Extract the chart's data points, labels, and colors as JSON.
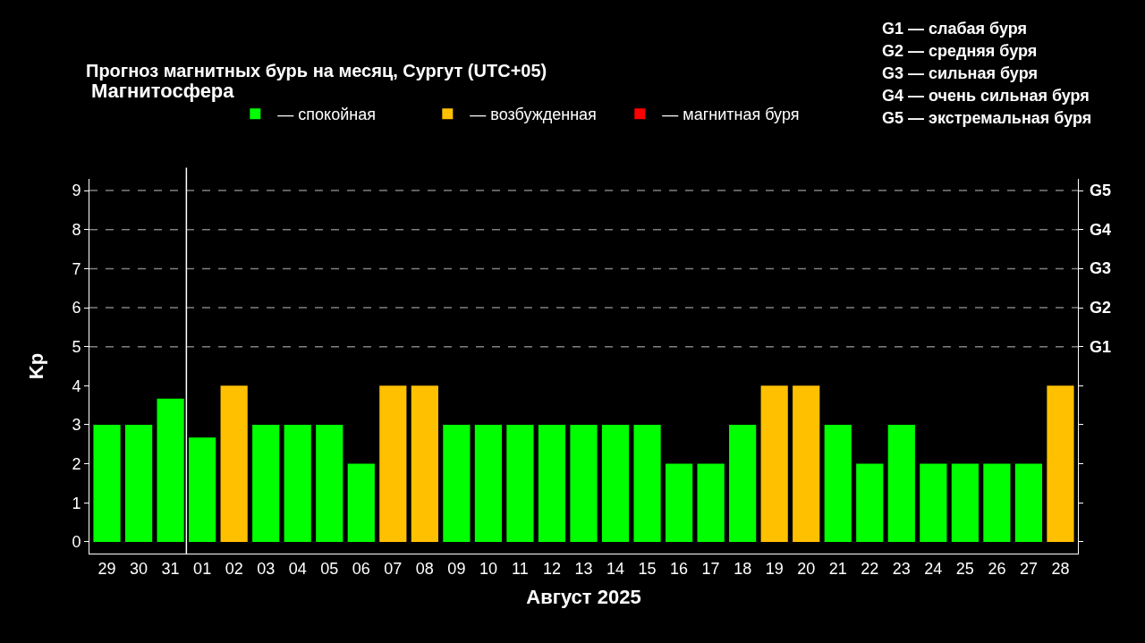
{
  "chart_data": {
    "type": "bar",
    "title": "Прогноз магнитных бурь на месяц, Сургут (UTC+05)",
    "legend_title": "Магнитосфера",
    "xlabel": "Август 2025",
    "ylabel": "Kp",
    "categories": [
      "29",
      "30",
      "31",
      "01",
      "02",
      "03",
      "04",
      "05",
      "06",
      "07",
      "08",
      "09",
      "10",
      "11",
      "12",
      "13",
      "14",
      "15",
      "16",
      "17",
      "18",
      "19",
      "20",
      "21",
      "22",
      "23",
      "24",
      "25",
      "26",
      "27",
      "28"
    ],
    "series": [
      {
        "name": "— спокойная",
        "color": "#00ff00",
        "values": [
          3,
          3,
          3.67,
          2.67,
          null,
          3,
          3,
          3,
          2,
          null,
          null,
          3,
          3,
          3,
          3,
          3,
          3,
          3,
          2,
          2,
          3,
          null,
          null,
          3,
          2,
          3,
          2,
          2,
          2,
          2,
          null
        ]
      },
      {
        "name": "— возбужденная",
        "color": "#ffc000",
        "values": [
          null,
          null,
          null,
          null,
          4,
          null,
          null,
          null,
          null,
          4,
          4,
          null,
          null,
          null,
          null,
          null,
          null,
          null,
          null,
          null,
          null,
          4,
          4,
          null,
          null,
          null,
          null,
          null,
          null,
          null,
          4
        ]
      },
      {
        "name": "— магнитная буря",
        "color": "#ff0000",
        "values": [
          null,
          null,
          null,
          null,
          null,
          null,
          null,
          null,
          null,
          null,
          null,
          null,
          null,
          null,
          null,
          null,
          null,
          null,
          null,
          null,
          null,
          null,
          null,
          null,
          null,
          null,
          null,
          null,
          null,
          null,
          null
        ]
      }
    ],
    "ylim": [
      -0.3,
      9.3
    ],
    "yticks": [
      0,
      1,
      2,
      3,
      4,
      5,
      6,
      7,
      8,
      9
    ],
    "ref_lines": [
      {
        "axis": "y",
        "value": 5,
        "label": "G1",
        "color": "#808080",
        "line_style": "dashed"
      },
      {
        "axis": "y",
        "value": 6,
        "label": "G2",
        "color": "#808080",
        "line_style": "dashed"
      },
      {
        "axis": "y",
        "value": 7,
        "label": "G3",
        "color": "#808080",
        "line_style": "dashed"
      },
      {
        "axis": "y",
        "value": 8,
        "label": "G4",
        "color": "#808080",
        "line_style": "dashed"
      },
      {
        "axis": "y",
        "value": 9,
        "label": "G5",
        "color": "#808080",
        "line_style": "dashed"
      },
      {
        "axis": "x",
        "value": "01",
        "color": "#ffffff",
        "line_style": "solid"
      }
    ],
    "annotations": [
      "G1 — слабая буря",
      "G2 — средняя буря",
      "G3 — сильная буря",
      "G4 — очень сильная буря",
      "G5 — экстремальная буря"
    ],
    "legend": "top",
    "grid": false
  }
}
